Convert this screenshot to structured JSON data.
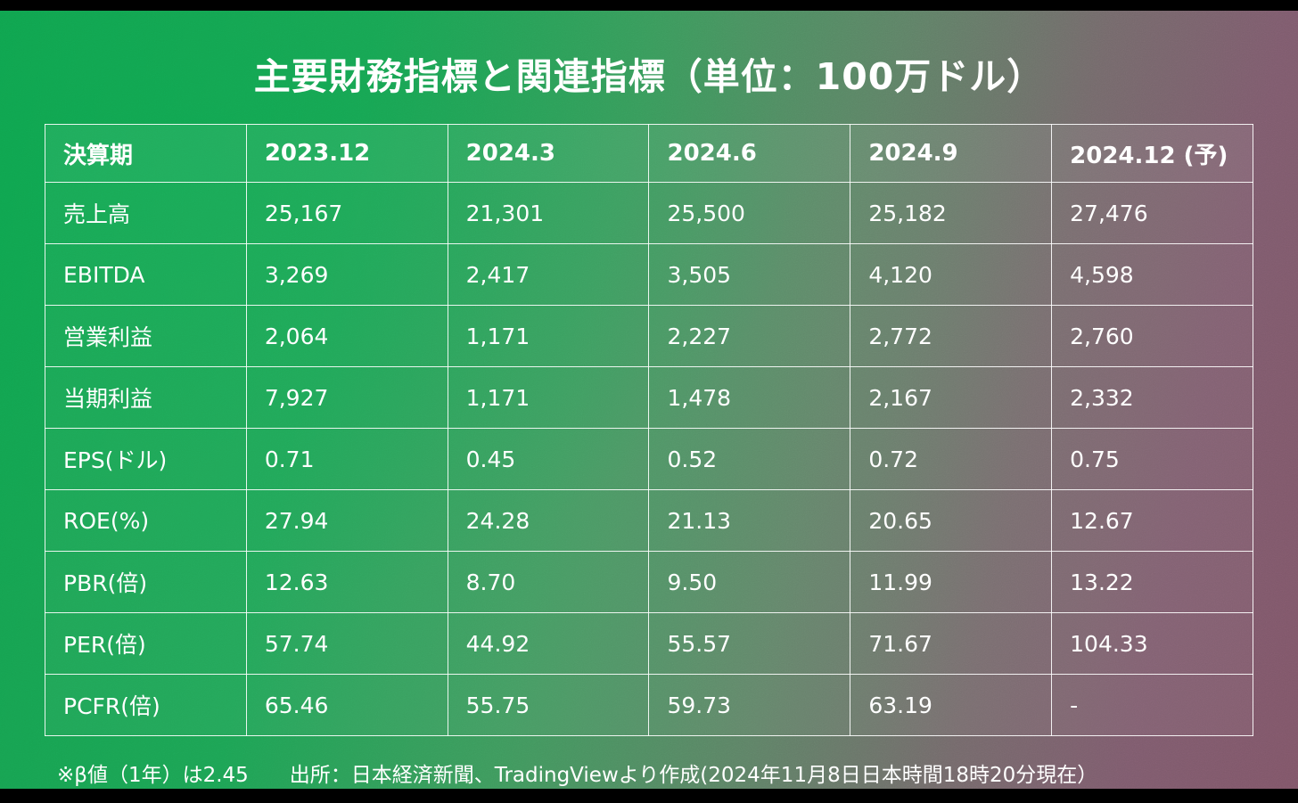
{
  "chart_data": {
    "type": "table",
    "title": "主要財務指標と関連指標（単位：100万ドル）",
    "columns": [
      "決算期",
      "2023.12",
      "2024.3",
      "2024.6",
      "2024.9",
      "2024.12 (予)"
    ],
    "rows": [
      [
        "売上高",
        "25,167",
        "21,301",
        "25,500",
        "25,182",
        "27,476"
      ],
      [
        "EBITDA",
        "3,269",
        "2,417",
        "3,505",
        "4,120",
        "4,598"
      ],
      [
        "営業利益",
        "2,064",
        "1,171",
        "2,227",
        "2,772",
        "2,760"
      ],
      [
        "当期利益",
        "7,927",
        "1,171",
        "1,478",
        "2,167",
        "2,332"
      ],
      [
        "EPS(ドル)",
        "0.71",
        "0.45",
        "0.52",
        "0.72",
        "0.75"
      ],
      [
        "ROE(%)",
        "27.94",
        "24.28",
        "21.13",
        "20.65",
        "12.67"
      ],
      [
        "PBR(倍)",
        "12.63",
        "8.70",
        "9.50",
        "11.99",
        "13.22"
      ],
      [
        "PER(倍)",
        "57.74",
        "44.92",
        "55.57",
        "71.67",
        "104.33"
      ],
      [
        "PCFR(倍)",
        "65.46",
        "55.75",
        "59.73",
        "63.19",
        "-"
      ]
    ]
  },
  "notes": {
    "beta": "※β値（1年）は2.45",
    "source": "出所：日本経済新聞、TradingViewより作成(2024年11月8日日本時間18時20分現在）"
  },
  "colors": {
    "background_green": "#16a452",
    "background_mauve": "#815669",
    "grid_line": "#ffffff",
    "text": "#ffffff",
    "letterbox": "#000000"
  }
}
